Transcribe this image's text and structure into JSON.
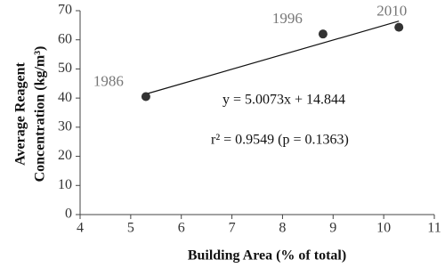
{
  "chart_data": {
    "type": "scatter",
    "x_label": "Building Area (% of total)",
    "y_label": [
      "Average Reagent",
      "Concentration (kg/m³)"
    ],
    "x": [
      5.3,
      8.8,
      10.3
    ],
    "values": [
      40.5,
      62,
      64.3
    ],
    "point_labels": [
      "1986",
      "1996",
      "2010"
    ],
    "color": "#333333",
    "xlim": [
      4,
      11
    ],
    "xticks": [
      4,
      5,
      6,
      7,
      8,
      9,
      10,
      11
    ],
    "ylim": [
      0,
      70
    ],
    "yticks": [
      0,
      10,
      20,
      30,
      40,
      50,
      60,
      70
    ],
    "trendline": {
      "equation": "y = 5.0073x + 14.844",
      "slope": 5.0073,
      "intercept": 14.844
    },
    "annotation": "r² = 0.9549 (p = 0.1363)"
  }
}
